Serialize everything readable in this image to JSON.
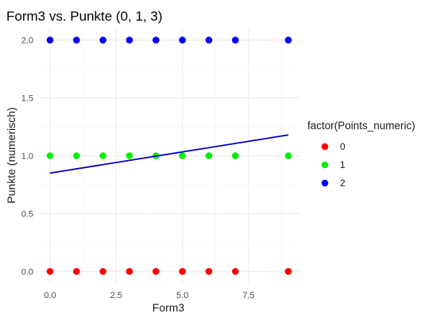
{
  "chart_data": {
    "type": "scatter",
    "title": "Form3 vs. Punkte (0, 1, 3)",
    "xlabel": "Form3",
    "ylabel": "Punkte (numerisch)",
    "xlim": [
      -0.45,
      9.45
    ],
    "ylim": [
      -0.1,
      2.1
    ],
    "x_ticks": [
      0,
      2.5,
      5,
      7.5
    ],
    "x_tick_labels": [
      "0.0",
      "2.5",
      "5.0",
      "7.5"
    ],
    "x_minor_ticks": [
      1.25,
      3.75,
      6.25,
      8.75
    ],
    "y_ticks": [
      0,
      0.5,
      1,
      1.5,
      2
    ],
    "y_tick_labels": [
      "0.0",
      "0.5",
      "1.0",
      "1.5",
      "2.0"
    ],
    "y_minor_ticks": [
      0.25,
      0.75,
      1.25,
      1.75
    ],
    "grid": true,
    "legend": {
      "title": "factor(Points_numeric)",
      "placement": "right",
      "entries": [
        {
          "label": "0",
          "color": "#ff0000"
        },
        {
          "label": "1",
          "color": "#00ee00"
        },
        {
          "label": "2",
          "color": "#0000ff"
        }
      ]
    },
    "series": [
      {
        "name": "0",
        "color": "#ff0000",
        "x": [
          0,
          1,
          2,
          3,
          4,
          5,
          6,
          7,
          9
        ],
        "y": [
          0,
          0,
          0,
          0,
          0,
          0,
          0,
          0,
          0
        ]
      },
      {
        "name": "1",
        "color": "#00ee00",
        "x": [
          0,
          1,
          2,
          3,
          4,
          5,
          6,
          7,
          9
        ],
        "y": [
          1,
          1,
          1,
          1,
          1,
          1,
          1,
          1,
          1
        ]
      },
      {
        "name": "2",
        "color": "#0000ff",
        "x": [
          0,
          1,
          2,
          3,
          4,
          5,
          6,
          7,
          9
        ],
        "y": [
          2,
          2,
          2,
          2,
          2,
          2,
          2,
          2,
          2
        ]
      }
    ],
    "trend_line": {
      "color": "#0000cc",
      "x": [
        0,
        9
      ],
      "y": [
        0.85,
        1.18
      ]
    }
  }
}
